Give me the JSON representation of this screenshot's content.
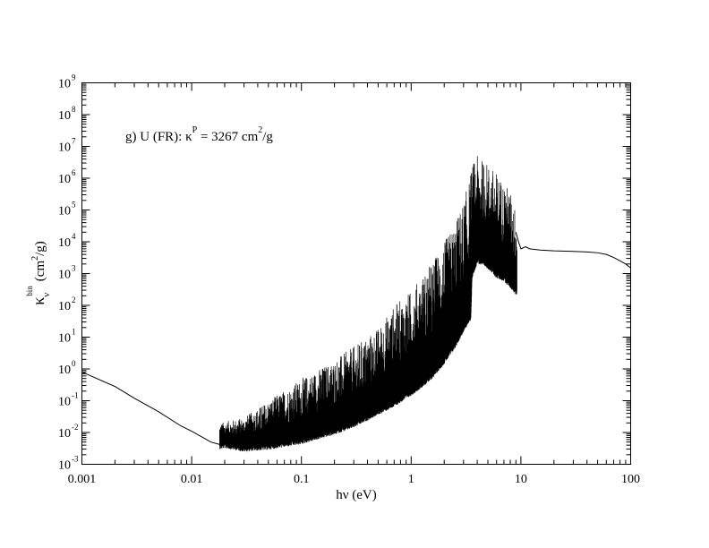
{
  "chart_data": {
    "type": "line",
    "x_scale": "log",
    "y_scale": "log",
    "xlim": [
      0.001,
      100
    ],
    "ylim": [
      0.001,
      1000000000
    ],
    "x_ticks": [
      {
        "value": 0.001,
        "label": "0.001"
      },
      {
        "value": 0.01,
        "label": "0.01"
      },
      {
        "value": 0.1,
        "label": "0.1"
      },
      {
        "value": 1,
        "label": "1"
      },
      {
        "value": 10,
        "label": "10"
      },
      {
        "value": 100,
        "label": "100"
      }
    ],
    "y_ticks": [
      {
        "value": 0.001,
        "base": "10",
        "exp": "-3"
      },
      {
        "value": 0.01,
        "base": "10",
        "exp": "-2"
      },
      {
        "value": 0.1,
        "base": "10",
        "exp": "-1"
      },
      {
        "value": 1,
        "base": "10",
        "exp": "0"
      },
      {
        "value": 10,
        "base": "10",
        "exp": "1"
      },
      {
        "value": 100,
        "base": "10",
        "exp": "2"
      },
      {
        "value": 1000,
        "base": "10",
        "exp": "3"
      },
      {
        "value": 10000,
        "base": "10",
        "exp": "4"
      },
      {
        "value": 100000,
        "base": "10",
        "exp": "5"
      },
      {
        "value": 1000000,
        "base": "10",
        "exp": "6"
      },
      {
        "value": 10000000,
        "base": "10",
        "exp": "7"
      },
      {
        "value": 100000000,
        "base": "10",
        "exp": "8"
      },
      {
        "value": 1000000000,
        "base": "10",
        "exp": "9"
      }
    ],
    "xlabel": "hν (eV)",
    "ylabel": {
      "symbol": "κ",
      "sub": "ν",
      "sup": "bin",
      "unit_open": "(cm",
      "unit_sup": "2",
      "unit_close": "/g)"
    },
    "annotation": {
      "prefix": "g) U (FR): κ",
      "sup_p": "P",
      "mid": " = 3267 cm",
      "sup_2": "2",
      "suffix": "/g"
    },
    "grid": false,
    "series": [
      {
        "style": "continuum",
        "points": [
          [
            0.001,
            0.8
          ],
          [
            0.002,
            0.28
          ],
          [
            0.003,
            0.12
          ],
          [
            0.005,
            0.045
          ],
          [
            0.008,
            0.016
          ],
          [
            0.01,
            0.011
          ],
          [
            0.015,
            0.005
          ],
          [
            0.018,
            0.0042
          ],
          [
            0.02,
            0.0045
          ],
          [
            0.03,
            0.0035
          ],
          [
            0.05,
            0.004
          ],
          [
            0.1,
            0.006
          ],
          [
            0.2,
            0.012
          ],
          [
            0.3,
            0.02
          ],
          [
            0.5,
            0.05
          ],
          [
            0.7,
            0.09
          ],
          [
            1,
            0.2
          ],
          [
            1.5,
            0.6
          ],
          [
            2,
            2
          ],
          [
            2.5,
            6
          ],
          [
            3,
            20
          ],
          [
            3.5,
            50
          ],
          [
            3.6,
            1000
          ],
          [
            4,
            3000
          ],
          [
            5,
            2000
          ],
          [
            6,
            1000
          ],
          [
            7,
            800
          ],
          [
            8,
            500
          ],
          [
            9,
            300
          ]
        ]
      },
      {
        "style": "envelope",
        "points": [
          [
            0.018,
            0.02
          ],
          [
            0.03,
            0.03
          ],
          [
            0.05,
            0.1
          ],
          [
            0.1,
            0.5
          ],
          [
            0.2,
            2
          ],
          [
            0.3,
            5
          ],
          [
            0.5,
            20
          ],
          [
            0.7,
            100
          ],
          [
            1,
            300
          ],
          [
            1.5,
            2000
          ],
          [
            2,
            10000
          ],
          [
            2.5,
            40000
          ],
          [
            3,
            200000
          ],
          [
            3.4,
            1000000
          ],
          [
            3.6,
            3000000
          ],
          [
            4,
            5000000
          ],
          [
            5,
            3000000
          ],
          [
            6,
            1500000
          ],
          [
            7,
            800000
          ],
          [
            8,
            400000
          ],
          [
            9,
            100000
          ]
        ]
      },
      {
        "style": "tail",
        "points": [
          [
            9,
            20000
          ],
          [
            9.5,
            10000
          ],
          [
            10,
            6000
          ],
          [
            11,
            7000
          ],
          [
            12,
            6000
          ],
          [
            15,
            5500
          ],
          [
            20,
            5200
          ],
          [
            30,
            5000
          ],
          [
            40,
            4800
          ],
          [
            50,
            4500
          ],
          [
            60,
            4000
          ],
          [
            70,
            3200
          ],
          [
            80,
            2500
          ],
          [
            90,
            2000
          ],
          [
            100,
            1500
          ]
        ]
      }
    ]
  }
}
